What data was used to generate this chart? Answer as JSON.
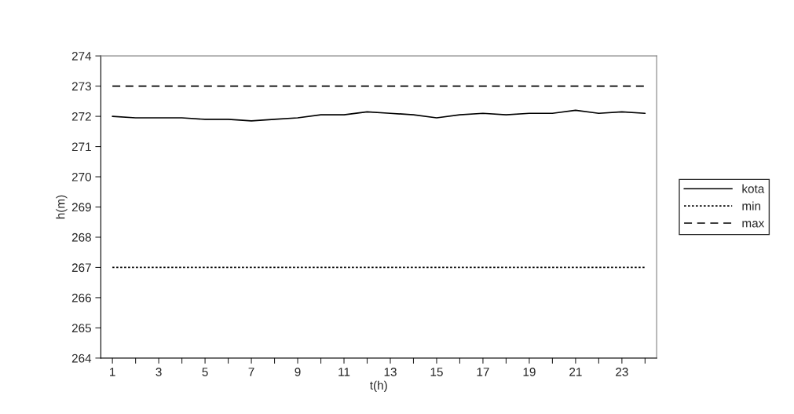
{
  "chart_data": {
    "type": "line",
    "xlabel": "t(h)",
    "ylabel": "h(m)",
    "categories": [
      "1",
      null,
      "3",
      null,
      "5",
      null,
      "7",
      null,
      "9",
      null,
      "11",
      null,
      "13",
      null,
      "15",
      null,
      "17",
      null,
      "19",
      null,
      "21",
      null,
      "23",
      null
    ],
    "series": [
      {
        "name": "kota",
        "color": "#000000",
        "line_style": "solid",
        "values": [
          272.0,
          271.95,
          271.95,
          271.95,
          271.9,
          271.9,
          271.85,
          271.9,
          271.95,
          272.05,
          272.05,
          272.15,
          272.1,
          272.05,
          271.95,
          272.05,
          272.1,
          272.05,
          272.1,
          272.1,
          272.2,
          272.1,
          272.15,
          272.1
        ]
      },
      {
        "name": "min",
        "color": "#000000",
        "line_style": "dotted",
        "values": [
          267,
          267,
          267,
          267,
          267,
          267,
          267,
          267,
          267,
          267,
          267,
          267,
          267,
          267,
          267,
          267,
          267,
          267,
          267,
          267,
          267,
          267,
          267,
          267
        ]
      },
      {
        "name": "max",
        "color": "#000000",
        "line_style": "dashed",
        "values": [
          273,
          273,
          273,
          273,
          273,
          273,
          273,
          273,
          273,
          273,
          273,
          273,
          273,
          273,
          273,
          273,
          273,
          273,
          273,
          273,
          273,
          273,
          273,
          273
        ]
      }
    ],
    "ylim": [
      264,
      274
    ],
    "yticks": [
      264,
      265,
      266,
      267,
      268,
      269,
      270,
      271,
      272,
      273,
      274
    ],
    "grid": false,
    "legend": "right",
    "marker": "none"
  }
}
